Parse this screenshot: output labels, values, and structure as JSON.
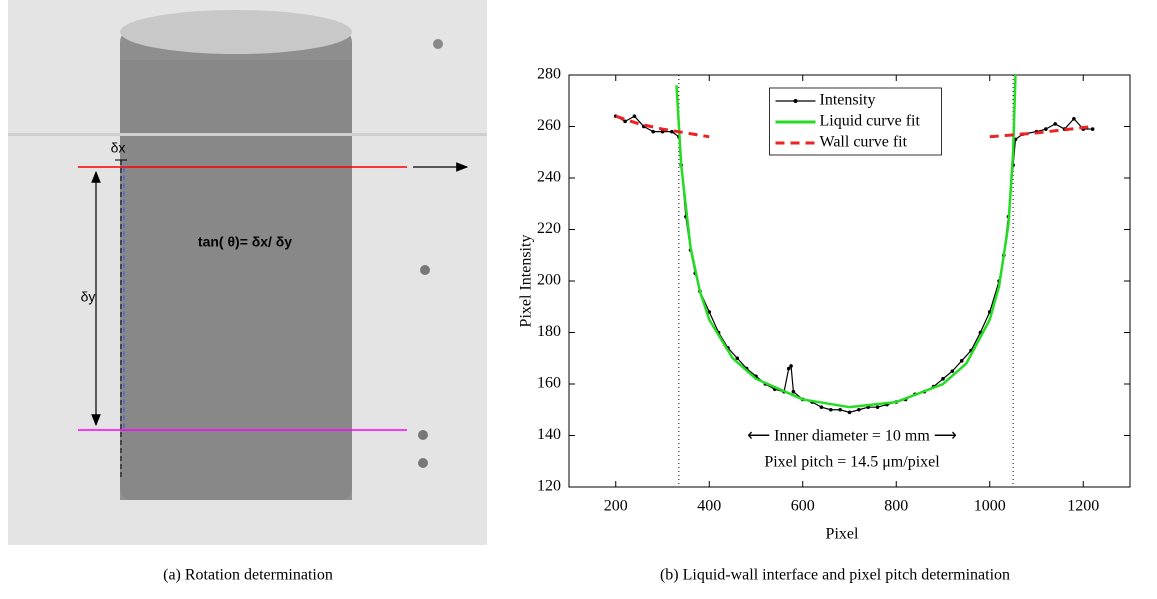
{
  "left_panel": {
    "annotations": {
      "dx": "δx",
      "dy": "δy",
      "formula": "tan( θ)= δx/ δy"
    },
    "caption": "(a) Rotation determination"
  },
  "right_panel": {
    "caption": "(b) Liquid-wall interface and pixel pitch determination"
  },
  "chart_data": {
    "type": "line",
    "xlabel": "Pixel",
    "ylabel": "Pixel Intensity",
    "xlim": [
      100,
      1300
    ],
    "xticks": [
      200,
      400,
      600,
      800,
      1000,
      1200
    ],
    "ylim": [
      120,
      280
    ],
    "yticks": [
      120,
      140,
      160,
      180,
      200,
      220,
      240,
      260,
      280
    ],
    "legend": "upper center",
    "vlines": [
      335,
      1050
    ],
    "annotations": [
      "⟵ Inner diameter = 10 mm ⟶",
      "Pixel pitch = 14.5 μm/pixel"
    ],
    "series": [
      {
        "name": "Intensity",
        "color": "#000000",
        "style": "solid-dots",
        "x": [
          200,
          220,
          240,
          260,
          280,
          300,
          320,
          335,
          340,
          350,
          360,
          370,
          380,
          400,
          420,
          440,
          460,
          480,
          500,
          520,
          540,
          560,
          570,
          575,
          580,
          600,
          620,
          640,
          660,
          680,
          700,
          720,
          740,
          760,
          780,
          800,
          820,
          840,
          860,
          880,
          900,
          920,
          940,
          960,
          980,
          1000,
          1020,
          1030,
          1040,
          1050,
          1055,
          1070,
          1100,
          1120,
          1140,
          1160,
          1180,
          1200,
          1220
        ],
        "values": [
          264,
          262,
          264,
          260,
          258,
          258,
          258,
          256,
          245,
          225,
          212,
          203,
          196,
          188,
          180,
          174,
          170,
          166,
          163,
          160,
          158,
          157,
          166,
          167,
          157,
          154,
          153,
          151,
          150,
          150,
          149,
          150,
          151,
          151,
          152,
          153,
          154,
          156,
          157,
          159,
          162,
          165,
          169,
          173,
          180,
          188,
          200,
          210,
          225,
          245,
          255,
          257,
          258,
          259,
          261,
          259,
          263,
          259,
          259
        ]
      },
      {
        "name": "Liquid curve fit",
        "color": "#22dd22",
        "style": "solid",
        "x": [
          330,
          340,
          360,
          380,
          400,
          450,
          500,
          600,
          700,
          800,
          900,
          950,
          1000,
          1020,
          1040,
          1050,
          1055
        ],
        "values": [
          276,
          245,
          213,
          196,
          185,
          170,
          162,
          154,
          151,
          153,
          160,
          168,
          185,
          198,
          222,
          250,
          280
        ]
      },
      {
        "name": "Wall curve fit",
        "color": "#ee2222",
        "style": "dashed",
        "x": [
          200,
          250,
          300,
          400,
          null,
          1000,
          1100,
          1220
        ],
        "values": [
          264,
          261,
          259,
          256,
          null,
          256,
          257.5,
          260
        ]
      }
    ]
  }
}
